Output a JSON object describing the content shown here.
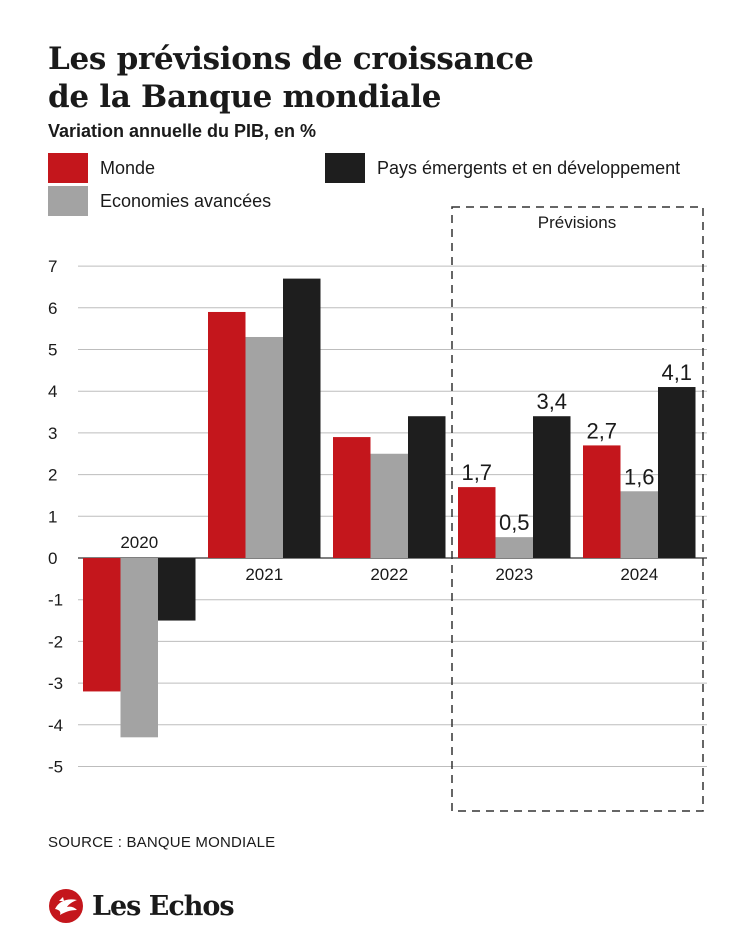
{
  "header": {
    "title_line1": "Les prévisions de croissance",
    "title_line2": "de la Banque mondiale",
    "subtitle": "Variation annuelle du PIB, en %"
  },
  "footer": {
    "source": "SOURCE : BANQUE MONDIALE",
    "brand": "Les Echos",
    "brand_logo_icon": "les-echos-logo-icon"
  },
  "colors": {
    "Monde": "#c4161c",
    "Economies avancées": "#a3a3a3",
    "Pays émergents et en développement": "#1e1e1e",
    "grid": "#bdbdbd",
    "forecast_box": "#333333"
  },
  "chart_data": {
    "type": "bar",
    "title": "Les prévisions de croissance de la Banque mondiale",
    "subtitle": "Variation annuelle du PIB, en %",
    "xlabel": "",
    "ylabel": "",
    "categories": [
      "2020",
      "2021",
      "2022",
      "2023",
      "2024"
    ],
    "series": [
      {
        "name": "Monde",
        "values": [
          -3.2,
          5.9,
          2.9,
          1.7,
          2.7
        ]
      },
      {
        "name": "Economies avancées",
        "values": [
          -4.3,
          5.3,
          2.5,
          0.5,
          1.6
        ]
      },
      {
        "name": "Pays émergents et en développement",
        "values": [
          -1.5,
          6.7,
          3.4,
          3.4,
          4.1
        ]
      }
    ],
    "ylim": [
      -5,
      7
    ],
    "yticks": [
      "-5",
      "-4",
      "-3",
      "-2",
      "-1",
      "0",
      "1",
      "2",
      "3",
      "4",
      "5",
      "6",
      "7"
    ],
    "grid": true,
    "legend_placement": "top",
    "forecast": {
      "label": "Prévisions",
      "categories": [
        "2023",
        "2024"
      ],
      "data_labels": [
        "1,7",
        "0,5",
        "3,4",
        "2,7",
        "1,6",
        "4,1"
      ]
    }
  }
}
